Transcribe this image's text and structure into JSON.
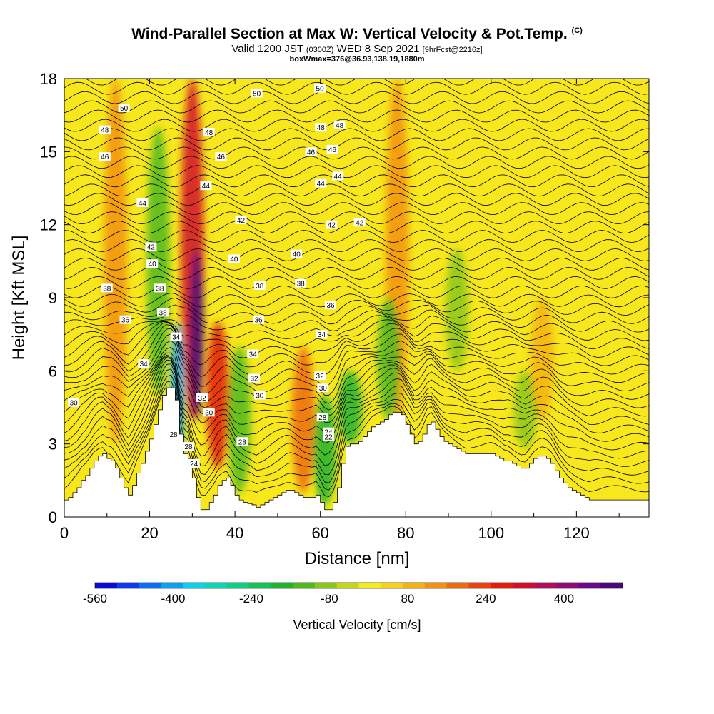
{
  "title": {
    "main": "Wind-Parallel Section at Max W: Vertical Velocity & Pot.Temp.",
    "main_mark": "(C)",
    "valid_prefix": "Valid 1200 JST",
    "valid_utc": "(0300Z)",
    "valid_date": "WED 8 Sep 2021",
    "forecast": "[9hrFcst@2216z]",
    "box_info": "boxWmax=376@36.93,138.19,1880m"
  },
  "colors": {
    "background_field": "#f7e71c",
    "terrain": "#ffffff",
    "contour": "#000000",
    "colorbar": [
      "#0b0bd7",
      "#0d3bef",
      "#0a6ff2",
      "#08a3f0",
      "#08d3ee",
      "#0ad6b6",
      "#0fcf82",
      "#14c357",
      "#22b32d",
      "#4fb91e",
      "#8bc71a",
      "#c4d817",
      "#f4ec17",
      "#f7d213",
      "#f6b10f",
      "#f3900d",
      "#ee6a0c",
      "#e9420b",
      "#e41b0d",
      "#d30e2c",
      "#b50c57",
      "#8e0c77",
      "#690a8e",
      "#49087c"
    ]
  },
  "chart_data": {
    "type": "heatmap",
    "xlabel": "Distance [nm]",
    "ylabel": "Height [Kft MSL]",
    "xlim": [
      0,
      137
    ],
    "ylim": [
      0,
      18
    ],
    "xticks": [
      "0",
      "20",
      "40",
      "60",
      "80",
      "100",
      "120"
    ],
    "xtick_values": [
      0,
      20,
      40,
      60,
      80,
      100,
      120
    ],
    "yticks": [
      "0",
      "3",
      "6",
      "9",
      "12",
      "15",
      "18"
    ],
    "ytick_values": [
      0,
      3,
      6,
      9,
      12,
      15,
      18
    ],
    "colorbar": {
      "label": "Vertical Velocity [cm/s]",
      "tick_labels": [
        "-560",
        "-400",
        "-240",
        "-80",
        "80",
        "240",
        "400"
      ],
      "tick_values": [
        -560,
        -400,
        -240,
        -80,
        80,
        240,
        400
      ],
      "range": [
        -560,
        520
      ]
    },
    "velocity_features": [
      {
        "x": 12,
        "ybot": 3,
        "ytop": 18,
        "value": 120
      },
      {
        "x": 22,
        "ybot": 5,
        "ytop": 16,
        "value": -150
      },
      {
        "x": 30,
        "ybot": 4,
        "ytop": 18,
        "value": 300
      },
      {
        "x": 31,
        "ybot": 4,
        "ytop": 11,
        "value": 480
      },
      {
        "x": 26.5,
        "ybot": 2,
        "ytop": 8,
        "value": -420
      },
      {
        "x": 36,
        "ybot": 2,
        "ytop": 8,
        "value": 250
      },
      {
        "x": 41,
        "ybot": 1,
        "ytop": 7,
        "value": -120
      },
      {
        "x": 56,
        "ybot": 1,
        "ytop": 7,
        "value": 160
      },
      {
        "x": 61,
        "ybot": 0.5,
        "ytop": 5,
        "value": -200
      },
      {
        "x": 67,
        "ybot": 3,
        "ytop": 6,
        "value": -200
      },
      {
        "x": 78,
        "ybot": 4,
        "ytop": 18,
        "value": 140
      },
      {
        "x": 76,
        "ybot": 4,
        "ytop": 9,
        "value": -150
      },
      {
        "x": 92,
        "ybot": 6,
        "ytop": 11,
        "value": -100
      },
      {
        "x": 108,
        "ybot": 2.8,
        "ytop": 6,
        "value": -110
      },
      {
        "x": 112,
        "ybot": 4,
        "ytop": 9,
        "value": 90
      }
    ],
    "terrain": [
      [
        0,
        0.7
      ],
      [
        1,
        0.8
      ],
      [
        2,
        1
      ],
      [
        3,
        1.2
      ],
      [
        4,
        1.5
      ],
      [
        5,
        1.7
      ],
      [
        6,
        2
      ],
      [
        7,
        2.3
      ],
      [
        8,
        2.5
      ],
      [
        9,
        2.6
      ],
      [
        10,
        2.4
      ],
      [
        11,
        2.3
      ],
      [
        12,
        2
      ],
      [
        13,
        1.6
      ],
      [
        14,
        1.2
      ],
      [
        15,
        0.9
      ],
      [
        16,
        1.3
      ],
      [
        17,
        1.8
      ],
      [
        18,
        2.2
      ],
      [
        19,
        2.7
      ],
      [
        20,
        3.2
      ],
      [
        21,
        3.8
      ],
      [
        22,
        4.4
      ],
      [
        23,
        5
      ],
      [
        24,
        5.3
      ],
      [
        25,
        5.3
      ],
      [
        26,
        4.8
      ],
      [
        27,
        3.4
      ],
      [
        28,
        2.6
      ],
      [
        29,
        2.4
      ],
      [
        30,
        1.6
      ],
      [
        31,
        0.8
      ],
      [
        32,
        0.3
      ],
      [
        33,
        0.3
      ],
      [
        34,
        0.6
      ],
      [
        35,
        0.9
      ],
      [
        36,
        1.3
      ],
      [
        37,
        1.5
      ],
      [
        38,
        1.6
      ],
      [
        39,
        1.3
      ],
      [
        40,
        0.9
      ],
      [
        41,
        0.7
      ],
      [
        42,
        0.6
      ],
      [
        43,
        0.55
      ],
      [
        44,
        0.5
      ],
      [
        45,
        0.4
      ],
      [
        46,
        0.5
      ],
      [
        47,
        0.6
      ],
      [
        48,
        0.7
      ],
      [
        49,
        0.8
      ],
      [
        50,
        0.9
      ],
      [
        51,
        1
      ],
      [
        52,
        1.1
      ],
      [
        53,
        1.1
      ],
      [
        54,
        1
      ],
      [
        55,
        0.9
      ],
      [
        56,
        0.8
      ],
      [
        57,
        0.8
      ],
      [
        58,
        0.8
      ],
      [
        59,
        0.9
      ],
      [
        60,
        0.6
      ],
      [
        61,
        0.3
      ],
      [
        62,
        0.3
      ],
      [
        63,
        0.6
      ],
      [
        64,
        1.2
      ],
      [
        65,
        2.2
      ],
      [
        66,
        2.9
      ],
      [
        67,
        3
      ],
      [
        68,
        3
      ],
      [
        69,
        3.1
      ],
      [
        70,
        3.3
      ],
      [
        71,
        3.5
      ],
      [
        72,
        3.7
      ],
      [
        73,
        3.8
      ],
      [
        74,
        3.9
      ],
      [
        75,
        4
      ],
      [
        76,
        4.2
      ],
      [
        77,
        4.3
      ],
      [
        78,
        4.3
      ],
      [
        79,
        4.2
      ],
      [
        80,
        3.8
      ],
      [
        81,
        3.4
      ],
      [
        82,
        3
      ],
      [
        83,
        3.1
      ],
      [
        84,
        3.4
      ],
      [
        85,
        3.8
      ],
      [
        86,
        3.9
      ],
      [
        87,
        3.6
      ],
      [
        88,
        3.3
      ],
      [
        89,
        3.1
      ],
      [
        90,
        3
      ],
      [
        91,
        2.9
      ],
      [
        92,
        2.8
      ],
      [
        93,
        2.7
      ],
      [
        94,
        2.6
      ],
      [
        95,
        2.6
      ],
      [
        96,
        2.6
      ],
      [
        97,
        2.6
      ],
      [
        98,
        2.6
      ],
      [
        99,
        2.6
      ],
      [
        100,
        2.6
      ],
      [
        101,
        2.5
      ],
      [
        102,
        2.4
      ],
      [
        103,
        2.3
      ],
      [
        104,
        2.3
      ],
      [
        105,
        2.2
      ],
      [
        106,
        2.1
      ],
      [
        107,
        2
      ],
      [
        108,
        2
      ],
      [
        109,
        2.2
      ],
      [
        110,
        2.4
      ],
      [
        111,
        2.5
      ],
      [
        112,
        2.5
      ],
      [
        113,
        2.4
      ],
      [
        114,
        2.2
      ],
      [
        115,
        1.9
      ],
      [
        116,
        1.6
      ],
      [
        117,
        1.4
      ],
      [
        118,
        1.2
      ],
      [
        119,
        1.1
      ],
      [
        120,
        1
      ],
      [
        121,
        0.9
      ],
      [
        122,
        0.8
      ],
      [
        123,
        0.7
      ],
      [
        124,
        0.7
      ],
      [
        125,
        0.7
      ],
      [
        126,
        0.7
      ],
      [
        127,
        0.7
      ],
      [
        128,
        0.7
      ],
      [
        129,
        0.7
      ],
      [
        130,
        0.7
      ],
      [
        131,
        0.7
      ],
      [
        132,
        0.7
      ],
      [
        133,
        0.7
      ],
      [
        134,
        0.7
      ],
      [
        135,
        0.7
      ],
      [
        136,
        0.7
      ],
      [
        137,
        0.7
      ]
    ],
    "isentrope_labels": [
      {
        "text": "50",
        "x": 14,
        "y": 16.8
      },
      {
        "text": "48",
        "x": 9.5,
        "y": 15.9
      },
      {
        "text": "46",
        "x": 9.5,
        "y": 14.8
      },
      {
        "text": "44",
        "x": 18.3,
        "y": 12.9
      },
      {
        "text": "42",
        "x": 20.3,
        "y": 11.1
      },
      {
        "text": "40",
        "x": 20.6,
        "y": 10.4
      },
      {
        "text": "38",
        "x": 10,
        "y": 9.4
      },
      {
        "text": "38",
        "x": 22.4,
        "y": 9.4
      },
      {
        "text": "38",
        "x": 23.1,
        "y": 8.4
      },
      {
        "text": "36",
        "x": 14.3,
        "y": 8.1
      },
      {
        "text": "34",
        "x": 18.6,
        "y": 6.3
      },
      {
        "text": "34",
        "x": 26.2,
        "y": 7.4
      },
      {
        "text": "30",
        "x": 2.2,
        "y": 4.7
      },
      {
        "text": "28",
        "x": 25.6,
        "y": 3.4
      },
      {
        "text": "28",
        "x": 29.1,
        "y": 2.9
      },
      {
        "text": "24",
        "x": 30.4,
        "y": 2.2
      },
      {
        "text": "32",
        "x": 32.3,
        "y": 4.9
      },
      {
        "text": "30",
        "x": 33.9,
        "y": 4.3
      },
      {
        "text": "48",
        "x": 33.9,
        "y": 15.8
      },
      {
        "text": "46",
        "x": 36.7,
        "y": 14.8
      },
      {
        "text": "44",
        "x": 33.2,
        "y": 13.6
      },
      {
        "text": "42",
        "x": 41.4,
        "y": 12.2
      },
      {
        "text": "40",
        "x": 39.8,
        "y": 10.6
      },
      {
        "text": "38",
        "x": 45.8,
        "y": 9.5
      },
      {
        "text": "36",
        "x": 45.5,
        "y": 8.1
      },
      {
        "text": "34",
        "x": 44.2,
        "y": 6.7
      },
      {
        "text": "32",
        "x": 44.5,
        "y": 5.7
      },
      {
        "text": "30",
        "x": 45.8,
        "y": 5.0
      },
      {
        "text": "28",
        "x": 41.7,
        "y": 3.1
      },
      {
        "text": "50",
        "x": 45.1,
        "y": 17.4
      },
      {
        "text": "48",
        "x": 60.1,
        "y": 16.0
      },
      {
        "text": "46",
        "x": 57.8,
        "y": 15.0
      },
      {
        "text": "44",
        "x": 60.1,
        "y": 13.7
      },
      {
        "text": "42",
        "x": 62.6,
        "y": 12.0
      },
      {
        "text": "40",
        "x": 54.4,
        "y": 10.8
      },
      {
        "text": "38",
        "x": 55.4,
        "y": 9.6
      },
      {
        "text": "36",
        "x": 62.4,
        "y": 8.7
      },
      {
        "text": "34",
        "x": 60.3,
        "y": 7.5
      },
      {
        "text": "32",
        "x": 59.9,
        "y": 5.8
      },
      {
        "text": "30",
        "x": 60.6,
        "y": 5.3
      },
      {
        "text": "28",
        "x": 60.5,
        "y": 4.1
      },
      {
        "text": "24",
        "x": 61.9,
        "y": 3.5
      },
      {
        "text": "22",
        "x": 61.9,
        "y": 3.3
      },
      {
        "text": "50",
        "x": 59.9,
        "y": 17.6
      },
      {
        "text": "48",
        "x": 64.5,
        "y": 16.1
      },
      {
        "text": "46",
        "x": 62.8,
        "y": 15.1
      },
      {
        "text": "44",
        "x": 64.1,
        "y": 14.0
      },
      {
        "text": "42",
        "x": 69.2,
        "y": 12.1
      }
    ]
  }
}
